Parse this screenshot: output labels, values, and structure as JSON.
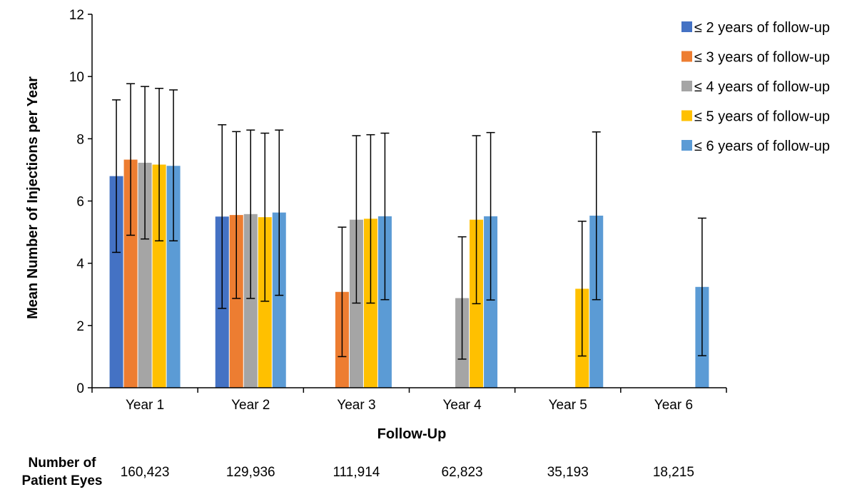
{
  "chart_data": {
    "type": "bar",
    "title": "",
    "xlabel": "Follow-Up",
    "ylabel": "Mean Number of Injections per Year",
    "ylim": [
      0,
      12
    ],
    "yticks": [
      0,
      2,
      4,
      6,
      8,
      10,
      12
    ],
    "categories": [
      "Year 1",
      "Year 2",
      "Year 3",
      "Year 4",
      "Year 5",
      "Year 6"
    ],
    "series": [
      {
        "name": "≤ 2 years of follow-up",
        "color": "#4472C4",
        "values": [
          6.8,
          5.5,
          null,
          null,
          null,
          null
        ],
        "err_low": [
          4.35,
          2.55,
          null,
          null,
          null,
          null
        ],
        "err_high": [
          9.25,
          8.45,
          null,
          null,
          null,
          null
        ]
      },
      {
        "name": "≤ 3 years of follow-up",
        "color": "#ED7D31",
        "values": [
          7.33,
          5.55,
          3.08,
          null,
          null,
          null
        ],
        "err_low": [
          4.9,
          2.87,
          1.0,
          null,
          null,
          null
        ],
        "err_high": [
          9.77,
          8.23,
          5.16,
          null,
          null,
          null
        ]
      },
      {
        "name": "≤ 4 years of follow-up",
        "color": "#A5A5A5",
        "values": [
          7.23,
          5.58,
          5.4,
          2.88,
          null,
          null
        ],
        "err_low": [
          4.78,
          2.87,
          2.72,
          0.92,
          null,
          null
        ],
        "err_high": [
          9.68,
          8.28,
          8.1,
          4.85,
          null,
          null
        ]
      },
      {
        "name": "≤ 5 years of follow-up",
        "color": "#FFC000",
        "values": [
          7.17,
          5.48,
          5.43,
          5.4,
          3.18,
          null
        ],
        "err_low": [
          4.72,
          2.78,
          2.72,
          2.7,
          1.02,
          null
        ],
        "err_high": [
          9.62,
          8.18,
          8.13,
          8.1,
          5.35,
          null
        ]
      },
      {
        "name": "≤ 6 years of follow-up",
        "color": "#5B9BD5",
        "values": [
          7.13,
          5.63,
          5.51,
          5.51,
          5.53,
          3.24
        ],
        "err_low": [
          4.72,
          2.97,
          2.83,
          2.82,
          2.83,
          1.03
        ],
        "err_high": [
          9.57,
          8.28,
          8.18,
          8.2,
          8.22,
          5.45
        ]
      }
    ],
    "legend_position": "top-right",
    "grid": false,
    "patient_eyes": {
      "label_line1": "Number of",
      "label_line2": "Patient Eyes",
      "values": [
        "160,423",
        "129,936",
        "111,914",
        "62,823",
        "35,193",
        "18,215"
      ]
    }
  }
}
